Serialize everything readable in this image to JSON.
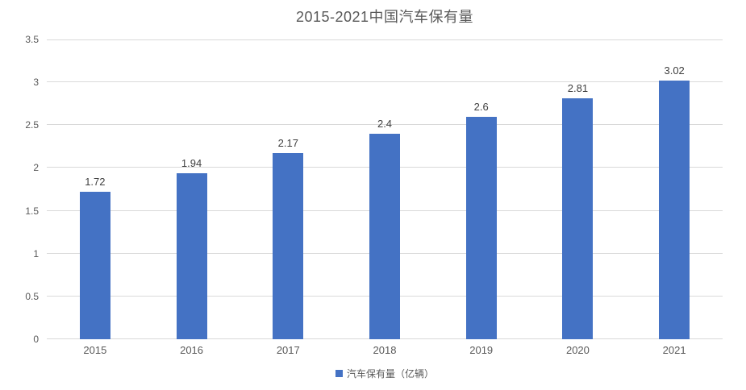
{
  "chart_data": {
    "type": "bar",
    "title": "2015-2021中国汽车保有量",
    "categories": [
      "2015",
      "2016",
      "2017",
      "2018",
      "2019",
      "2020",
      "2021"
    ],
    "values": [
      1.72,
      1.94,
      2.17,
      2.4,
      2.6,
      2.81,
      3.02
    ],
    "value_labels": [
      "1.72",
      "1.94",
      "2.17",
      "2.4",
      "2.6",
      "2.81",
      "3.02"
    ],
    "series_name": "汽车保有量（亿辆）",
    "xlabel": "",
    "ylabel": "",
    "ylim": [
      0,
      3.5
    ],
    "y_tick_step": 0.5,
    "y_tick_labels": [
      "0",
      "0.5",
      "1",
      "1.5",
      "2",
      "2.5",
      "3",
      "3.5"
    ],
    "grid": "horizontal",
    "legend_position": "bottom",
    "colors": {
      "bar": "#4472c4",
      "gridline": "#d9d9d9",
      "title_text": "#595959",
      "axis_text": "#595959",
      "value_label_text": "#404040"
    }
  }
}
